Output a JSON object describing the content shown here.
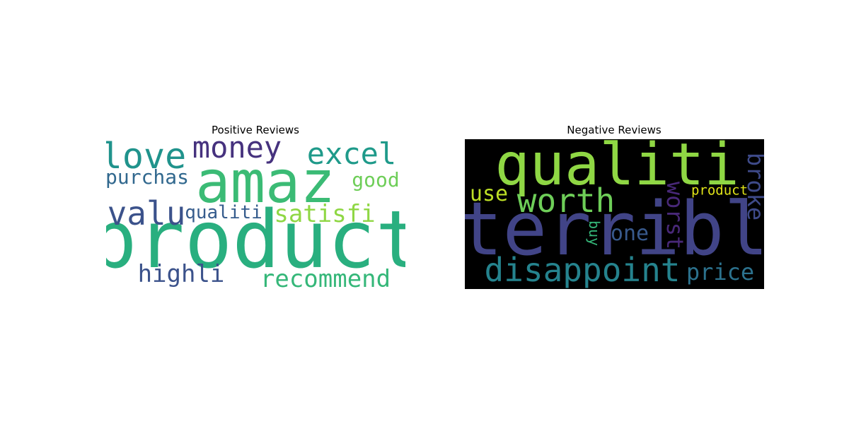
{
  "chart_data": [
    {
      "type": "wordcloud",
      "title": "Positive Reviews",
      "background": "#ffffff",
      "words": [
        {
          "text": "product",
          "color": "#29af7f"
        },
        {
          "text": "amaz",
          "color": "#3bbb75"
        },
        {
          "text": "love",
          "color": "#20938c"
        },
        {
          "text": "money",
          "color": "#46327e"
        },
        {
          "text": "excel",
          "color": "#1f9a8a"
        },
        {
          "text": "valu",
          "color": "#3b528b"
        },
        {
          "text": "purchas",
          "color": "#31688e"
        },
        {
          "text": "good",
          "color": "#6ece58"
        },
        {
          "text": "qualiti",
          "color": "#365c8d"
        },
        {
          "text": "satisfi",
          "color": "#8fd744"
        },
        {
          "text": "highli",
          "color": "#3b528b"
        },
        {
          "text": "recommend",
          "color": "#35b779"
        }
      ]
    },
    {
      "type": "wordcloud",
      "title": "Negative Reviews",
      "background": "#000000",
      "words": [
        {
          "text": "terribl",
          "color": "#414487"
        },
        {
          "text": "qualiti",
          "color": "#8fd744"
        },
        {
          "text": "worth",
          "color": "#6ece58"
        },
        {
          "text": "disappoint",
          "color": "#25838e"
        },
        {
          "text": "use",
          "color": "#bddf26"
        },
        {
          "text": "worst",
          "color": "#482878"
        },
        {
          "text": "product",
          "color": "#dfe318"
        },
        {
          "text": "broke",
          "color": "#3e4a89"
        },
        {
          "text": "one",
          "color": "#38598c"
        },
        {
          "text": "buy",
          "color": "#35b779"
        },
        {
          "text": "price",
          "color": "#2c728e"
        }
      ]
    }
  ]
}
